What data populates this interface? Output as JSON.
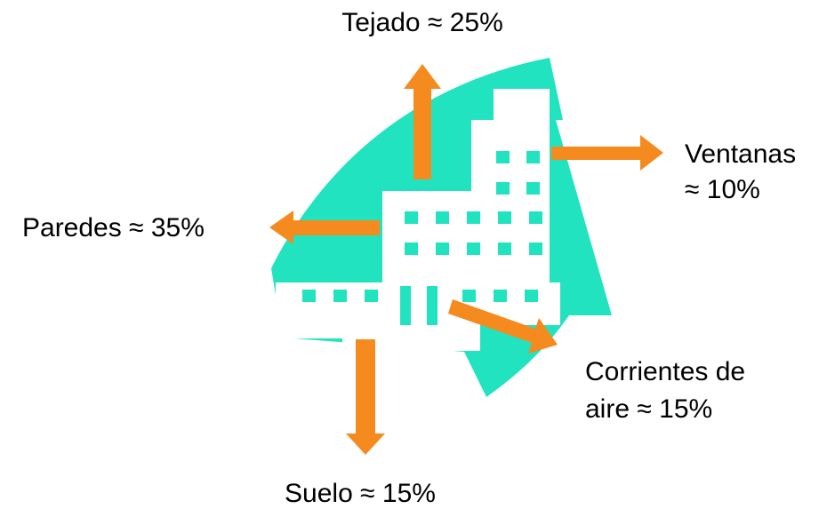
{
  "labels": {
    "roof": [
      "Tejado ≈ 25%"
    ],
    "windows": [
      "Ventanas",
      "≈ 10%"
    ],
    "walls": [
      "Paredes ≈ 35%"
    ],
    "drafts": [
      "Corrientes de",
      "aire ≈ 15%"
    ],
    "floor": [
      "Suelo ≈ 15%"
    ]
  }
}
